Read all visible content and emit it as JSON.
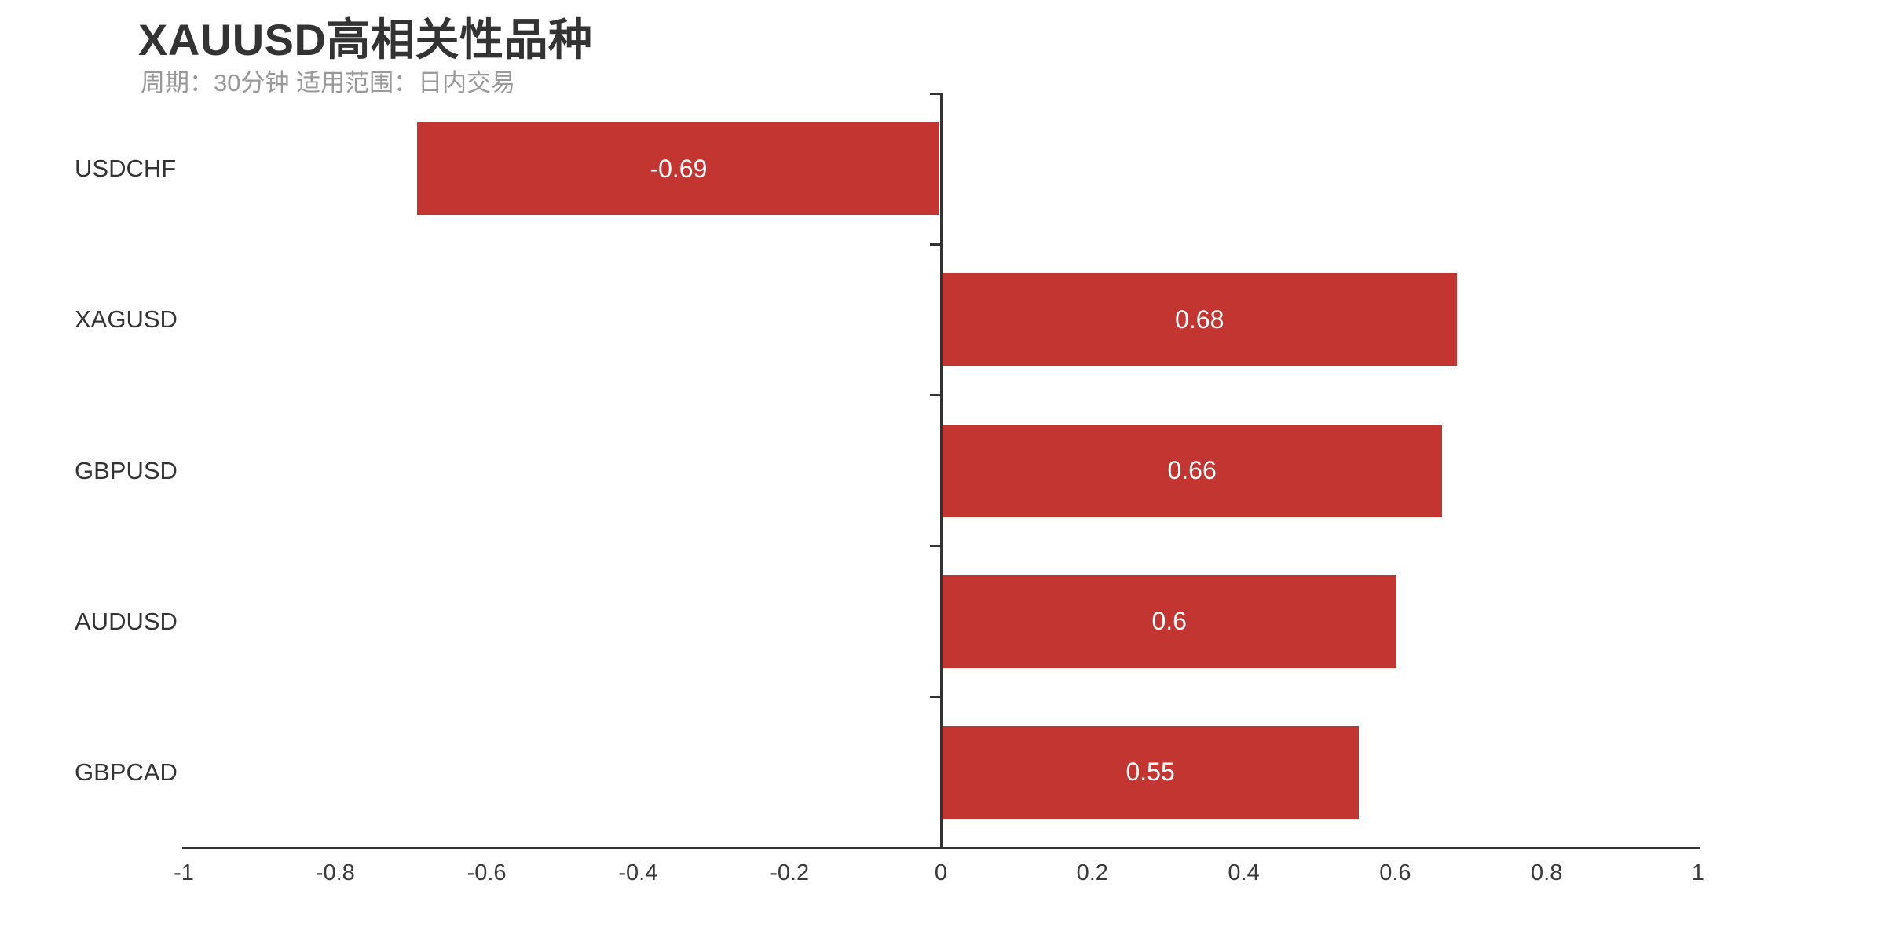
{
  "header": {
    "title": "XAUUSD高相关性品种",
    "subtitle": "周期：30分钟 适用范围：日内交易"
  },
  "colors": {
    "background": "#ffffff",
    "bar": "#c23531",
    "axis": "#333333",
    "title_text": "#333333",
    "subtitle_text": "#999999",
    "tick_label_text": "#3a3a3a",
    "category_label_text": "#333333",
    "value_label_text": "#ffffff"
  },
  "chart_data": {
    "type": "bar",
    "orientation": "horizontal",
    "title": "XAUUSD高相关性品种",
    "subtitle": "周期：30分钟 适用范围：日内交易",
    "categories": [
      "USDCHF",
      "XAGUSD",
      "GBPUSD",
      "AUDUSD",
      "GBPCAD"
    ],
    "values": [
      -0.69,
      0.68,
      0.66,
      0.6,
      0.55
    ],
    "value_labels": [
      "-0.69",
      "0.68",
      "0.66",
      "0.6",
      "0.55"
    ],
    "xlabel": "",
    "ylabel": "",
    "xlim": [
      -1,
      1
    ],
    "x_ticks": [
      "-1",
      "-0.8",
      "-0.6",
      "-0.4",
      "-0.2",
      "0",
      "0.2",
      "0.4",
      "0.6",
      "0.8",
      "1"
    ],
    "grid": false,
    "legend": false,
    "bar_label_position": "inside-center"
  }
}
